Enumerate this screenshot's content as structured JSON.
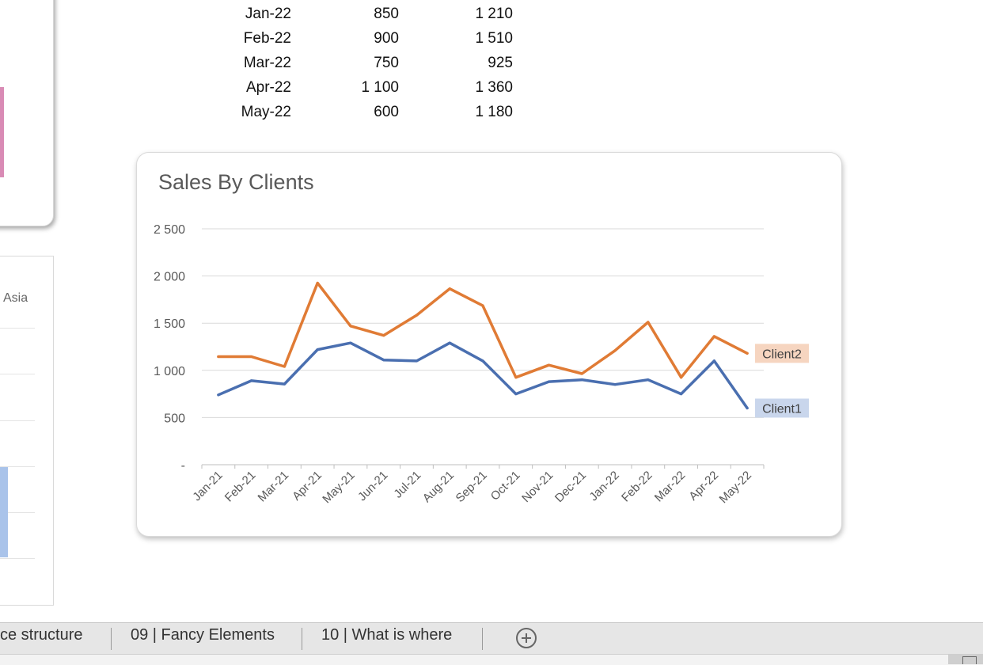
{
  "table": {
    "rows": [
      {
        "month": "Jan-22",
        "client1": "850",
        "client2": "1 210"
      },
      {
        "month": "Feb-22",
        "client1": "900",
        "client2": "1 510"
      },
      {
        "month": "Mar-22",
        "client1": "750",
        "client2": "925"
      },
      {
        "month": "Apr-22",
        "client1": "1 100",
        "client2": "1 360"
      },
      {
        "month": "May-22",
        "client1": "600",
        "client2": "1 180"
      }
    ]
  },
  "left_chart": {
    "asia_label": "Asia"
  },
  "chart_data": {
    "type": "line",
    "title": "Sales By Clients",
    "xlabel": "",
    "ylabel": "",
    "categories": [
      "Jan-21",
      "Feb-21",
      "Mar-21",
      "Apr-21",
      "May-21",
      "Jun-21",
      "Jul-21",
      "Aug-21",
      "Sep-21",
      "Oct-21",
      "Nov-21",
      "Dec-21",
      "Jan-22",
      "Feb-22",
      "Mar-22",
      "Apr-22",
      "May-22"
    ],
    "series": [
      {
        "name": "Client1",
        "color": "#4a6fb0",
        "values": [
          740,
          890,
          855,
          1220,
          1290,
          1110,
          1100,
          1290,
          1100,
          750,
          880,
          900,
          850,
          900,
          750,
          1100,
          600
        ]
      },
      {
        "name": "Client2",
        "color": "#e07b35",
        "values": [
          1145,
          1145,
          1040,
          1925,
          1470,
          1370,
          1585,
          1865,
          1685,
          925,
          1055,
          965,
          1210,
          1510,
          925,
          1360,
          1180
        ]
      }
    ],
    "ylim": [
      0,
      2500
    ],
    "yticks": [
      0,
      500,
      1000,
      1500,
      2000,
      2500
    ],
    "ytick_labels": [
      "-",
      "500",
      "1 000",
      "1 500",
      "2 000",
      "2 500"
    ],
    "grid": true,
    "legend": "inline-right"
  },
  "sheet_tabs": [
    {
      "label": "ce structure"
    },
    {
      "label": "09 | Fancy Elements"
    },
    {
      "label": "10 | What is where"
    }
  ]
}
